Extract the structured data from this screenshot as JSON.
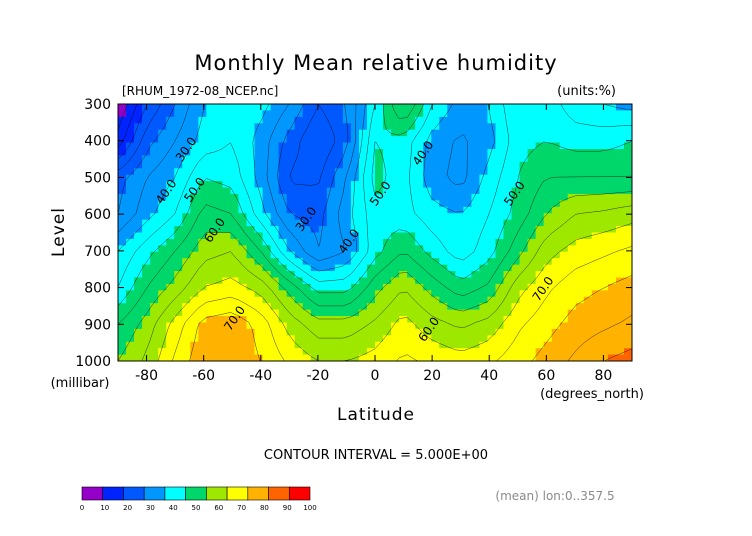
{
  "chart_data": {
    "type": "contour",
    "title": "Monthly Mean relative humidity",
    "source_label": "[RHUM_1972-08_NCEP.nc]",
    "units_label": "(units:%)",
    "xlabel": "Latitude",
    "x_units": "(degrees_north)",
    "ylabel": "Level",
    "y_units": "(millibar)",
    "contour_interval_label": "CONTOUR INTERVAL = 5.000E+00",
    "mean_label": "(mean) lon:0..357.5",
    "xlim": [
      -90,
      90
    ],
    "ylim": [
      1000,
      300
    ],
    "x_ticks": [
      -80,
      -60,
      -40,
      -20,
      0,
      20,
      40,
      60,
      80
    ],
    "y_ticks": [
      300,
      400,
      500,
      600,
      700,
      800,
      900,
      1000
    ],
    "contour_labels": [
      {
        "text": "30.0",
        "x": -65,
        "y": 430
      },
      {
        "text": "40.0",
        "x": -72,
        "y": 545
      },
      {
        "text": "50.0",
        "x": -62,
        "y": 540
      },
      {
        "text": "60.0",
        "x": -55,
        "y": 650
      },
      {
        "text": "70.0",
        "x": -48,
        "y": 890
      },
      {
        "text": "30.0",
        "x": -23,
        "y": 620
      },
      {
        "text": "40.0",
        "x": -8,
        "y": 680
      },
      {
        "text": "50.0",
        "x": 3,
        "y": 550
      },
      {
        "text": "40.0",
        "x": 18,
        "y": 440
      },
      {
        "text": "60.0",
        "x": 20,
        "y": 920
      },
      {
        "text": "50.0",
        "x": 50,
        "y": 550
      },
      {
        "text": "70.0",
        "x": 60,
        "y": 810
      }
    ],
    "colorbar": {
      "ticks": [
        0,
        10,
        20,
        30,
        40,
        50,
        60,
        70,
        80,
        90,
        100
      ],
      "colors": [
        "#9400c8",
        "#0024ff",
        "#0058ff",
        "#0098ff",
        "#00ffff",
        "#00d76a",
        "#9ee800",
        "#ffff00",
        "#ffb300",
        "#ff6400",
        "#ff0000"
      ]
    },
    "sample_field": {
      "x": [
        -90,
        -80,
        -70,
        -60,
        -50,
        -40,
        -30,
        -20,
        -10,
        0,
        10,
        20,
        30,
        40,
        50,
        60,
        70,
        80,
        90
      ],
      "y": [
        300,
        400,
        500,
        600,
        700,
        800,
        900,
        1000
      ],
      "values": [
        [
          5,
          20,
          30,
          40,
          45,
          42,
          35,
          25,
          30,
          45,
          62,
          45,
          38,
          40,
          50,
          48,
          42,
          40,
          38
        ],
        [
          12,
          28,
          35,
          42,
          45,
          38,
          28,
          20,
          28,
          50,
          48,
          38,
          34,
          38,
          48,
          50,
          48,
          48,
          50
        ],
        [
          28,
          35,
          40,
          50,
          48,
          38,
          24,
          24,
          35,
          52,
          47,
          37,
          33,
          42,
          50,
          55,
          55,
          55,
          55
        ],
        [
          30,
          38,
          45,
          57,
          55,
          42,
          30,
          28,
          38,
          48,
          47,
          42,
          40,
          45,
          52,
          60,
          65,
          66,
          68
        ],
        [
          40,
          48,
          55,
          63,
          65,
          55,
          40,
          30,
          35,
          48,
          55,
          48,
          42,
          48,
          58,
          68,
          72,
          74,
          76
        ],
        [
          45,
          55,
          62,
          70,
          72,
          68,
          58,
          48,
          48,
          58,
          65,
          58,
          52,
          56,
          68,
          74,
          78,
          80,
          82
        ],
        [
          55,
          62,
          72,
          82,
          84,
          78,
          68,
          62,
          62,
          66,
          72,
          67,
          64,
          67,
          74,
          78,
          82,
          84,
          86
        ],
        [
          60,
          66,
          76,
          84,
          84,
          80,
          74,
          70,
          70,
          72,
          76,
          74,
          72,
          74,
          78,
          82,
          86,
          90,
          92
        ]
      ]
    }
  }
}
